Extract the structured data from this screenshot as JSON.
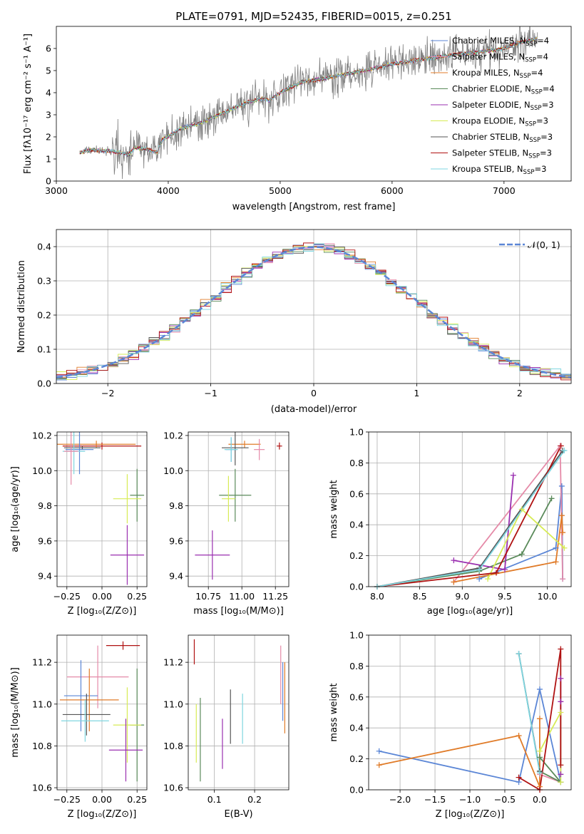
{
  "figure": {
    "title": "PLATE=0791, MJD=52435, FIBERID=0015, z=0.251"
  },
  "colors": {
    "chabrier_miles": "#5b86d6",
    "salpeter_miles": "#e58aa8",
    "kroupa_miles": "#e07b28",
    "chabrier_elodie": "#5a8a5a",
    "salpeter_elodie": "#9a2fb0",
    "kroupa_elodie": "#d7eb55",
    "chabrier_stelib": "#555555",
    "salpeter_stelib": "#b01212",
    "kroupa_stelib": "#7fd6e0",
    "data": "#808080",
    "normal": "#5b86d6",
    "grid": "#b0b0b0"
  },
  "chart_data": [
    {
      "id": "spectrum",
      "type": "line",
      "title": "PLATE=0791, MJD=52435, FIBERID=0015, z=0.251",
      "xlabel": "wavelength [Angstrom, rest frame]",
      "ylabel": "Flux [fλ10⁻¹⁷ erg cm⁻² s⁻¹ A⁻¹]",
      "xlim": [
        3000,
        7600
      ],
      "ylim": [
        0,
        7
      ],
      "xticks": [
        3000,
        4000,
        5000,
        6000,
        7000
      ],
      "yticks": [
        0,
        1,
        2,
        3,
        4,
        5,
        6
      ],
      "grid": false,
      "legend_position": "top-right",
      "legend": [
        {
          "label": "Chabrier MILES, N_SSP=4",
          "color_key": "chabrier_miles"
        },
        {
          "label": "Salpeter MILES, N_SSP=4",
          "color_key": "salpeter_miles"
        },
        {
          "label": "Kroupa MILES, N_SSP=4",
          "color_key": "kroupa_miles"
        },
        {
          "label": "Chabrier ELODIE, N_SSP=4",
          "color_key": "chabrier_elodie"
        },
        {
          "label": "Salpeter ELODIE, N_SSP=3",
          "color_key": "salpeter_elodie"
        },
        {
          "label": "Kroupa ELODIE, N_SSP=3",
          "color_key": "kroupa_elodie"
        },
        {
          "label": "Chabrier STELIB, N_SSP=3",
          "color_key": "chabrier_stelib"
        },
        {
          "label": "Salpeter STELIB, N_SSP=3",
          "color_key": "salpeter_stelib"
        },
        {
          "label": "Kroupa STELIB, N_SSP=3",
          "color_key": "kroupa_stelib"
        }
      ],
      "model_continuum": {
        "x": [
          3210,
          3300,
          3500,
          3650,
          3700,
          3800,
          3900,
          3950,
          4000,
          4100,
          4300,
          4500,
          4700,
          4850,
          4900,
          5000,
          5200,
          5400,
          5600,
          5800,
          6000,
          6200,
          6400,
          6600,
          6800,
          7000,
          7100,
          7200,
          7300
        ],
        "y": [
          1.3,
          1.4,
          1.35,
          1.2,
          1.5,
          1.45,
          1.3,
          1.9,
          2.0,
          2.35,
          2.65,
          3.1,
          3.55,
          3.75,
          3.65,
          4.0,
          4.5,
          4.65,
          4.85,
          5.05,
          5.3,
          5.45,
          5.6,
          5.75,
          5.85,
          6.0,
          6.2,
          6.35,
          6.45
        ]
      },
      "data_noise_amplitude": 1.2
    },
    {
      "id": "residuals",
      "type": "line",
      "xlabel": "(data-model)/error",
      "ylabel": "Normed distribution",
      "xlim": [
        -2.5,
        2.5
      ],
      "ylim": [
        0,
        0.45
      ],
      "xticks": [
        -2,
        -1,
        0,
        1,
        2
      ],
      "yticks": [
        0.0,
        0.1,
        0.2,
        0.3,
        0.4
      ],
      "grid": true,
      "legend_position": "top-right",
      "legend_label": "𝒩(0, 1)",
      "bin_width": 0.1
    },
    {
      "id": "age_vs_Z",
      "type": "scatter",
      "xlabel": "Z [log₁₀(Z/Z⊙)]",
      "ylabel": "age  [log₁₀(age/yr)]",
      "xlim": [
        -0.32,
        0.32
      ],
      "ylim": [
        9.34,
        10.22
      ],
      "xticks": [
        -0.25,
        0.0,
        0.25
      ],
      "yticks": [
        9.4,
        9.6,
        9.8,
        10.0,
        10.2
      ],
      "grid": true,
      "points": [
        {
          "key": "salpeter_stelib",
          "x": 0.0,
          "xerr": 0.28,
          "y": 10.14,
          "yerr": 0.02
        },
        {
          "key": "kroupa_miles",
          "x": -0.04,
          "xerr": 0.28,
          "y": 10.15,
          "yerr": 0.02
        },
        {
          "key": "chabrier_stelib",
          "x": -0.14,
          "xerr": 0.13,
          "y": 10.13,
          "yerr": 0.01
        },
        {
          "key": "chabrier_miles",
          "x": -0.16,
          "xerr": 0.1,
          "y": 10.12,
          "yerr": 0.14
        },
        {
          "key": "kroupa_stelib",
          "x": -0.2,
          "xerr": 0.08,
          "y": 10.11,
          "yerr": 0.13
        },
        {
          "key": "salpeter_miles",
          "x": -0.22,
          "xerr": 0.05,
          "y": 10.11,
          "yerr": 0.19
        },
        {
          "key": "chabrier_elodie",
          "x": 0.25,
          "xerr": 0.05,
          "y": 9.86,
          "yerr": 0.15
        },
        {
          "key": "kroupa_elodie",
          "x": 0.18,
          "xerr": 0.1,
          "y": 9.84,
          "yerr": 0.14
        },
        {
          "key": "salpeter_elodie",
          "x": 0.18,
          "xerr": 0.12,
          "y": 9.52,
          "yerr": 0.17
        }
      ]
    },
    {
      "id": "age_vs_mass",
      "type": "scatter",
      "xlabel": "mass [log₁₀(M/M⊙)]",
      "xlim": [
        10.6,
        11.35
      ],
      "ylim": [
        9.34,
        10.22
      ],
      "xticks": [
        10.75,
        11.0,
        11.25
      ],
      "yticks": [
        9.4,
        9.6,
        9.8,
        10.0,
        10.2
      ],
      "grid": true,
      "points": [
        {
          "key": "salpeter_stelib",
          "x": 11.28,
          "xerr": 0.02,
          "y": 10.14,
          "yerr": 0.02
        },
        {
          "key": "kroupa_miles",
          "x": 11.02,
          "xerr": 0.12,
          "y": 10.15,
          "yerr": 0.02
        },
        {
          "key": "salpeter_miles",
          "x": 11.13,
          "xerr": 0.04,
          "y": 10.12,
          "yerr": 0.06
        },
        {
          "key": "chabrier_stelib",
          "x": 10.95,
          "xerr": 0.1,
          "y": 10.13,
          "yerr": 0.1
        },
        {
          "key": "chabrier_miles",
          "x": 10.92,
          "xerr": 0.04,
          "y": 10.12,
          "yerr": 0.07
        },
        {
          "key": "kroupa_stelib",
          "x": 10.92,
          "xerr": 0.05,
          "y": 10.12,
          "yerr": 0.07
        },
        {
          "key": "chabrier_elodie",
          "x": 10.95,
          "xerr": 0.12,
          "y": 9.86,
          "yerr": 0.15
        },
        {
          "key": "kroupa_elodie",
          "x": 10.9,
          "xerr": 0.05,
          "y": 9.84,
          "yerr": 0.13
        },
        {
          "key": "salpeter_elodie",
          "x": 10.78,
          "xerr": 0.13,
          "y": 9.52,
          "yerr": 0.14
        }
      ]
    },
    {
      "id": "weight_vs_age",
      "type": "line",
      "xlabel": "age  [log₁₀(age/yr)]",
      "ylabel": "mass weight",
      "xlim": [
        7.9,
        10.28
      ],
      "ylim": [
        0,
        1.0
      ],
      "xticks": [
        8.0,
        8.5,
        9.0,
        9.5,
        10.0
      ],
      "yticks": [
        0.0,
        0.2,
        0.4,
        0.6,
        0.8,
        1.0
      ],
      "grid": true,
      "series": [
        {
          "key": "chabrier_miles",
          "x": [
            9.2,
            10.1,
            10.17,
            10.18
          ],
          "y": [
            0.05,
            0.25,
            0.65,
            0.05
          ]
        },
        {
          "key": "salpeter_miles",
          "x": [
            8.9,
            10.15,
            10.18
          ],
          "y": [
            0.03,
            0.91,
            0.05
          ]
        },
        {
          "key": "kroupa_miles",
          "x": [
            8.9,
            10.1,
            10.17,
            10.18
          ],
          "y": [
            0.03,
            0.16,
            0.46,
            0.35
          ]
        },
        {
          "key": "chabrier_elodie",
          "x": [
            8.0,
            9.2,
            9.7,
            10.05
          ],
          "y": [
            0.0,
            0.1,
            0.21,
            0.57
          ]
        },
        {
          "key": "salpeter_elodie",
          "x": [
            8.9,
            9.5,
            9.6
          ],
          "y": [
            0.17,
            0.11,
            0.72
          ]
        },
        {
          "key": "kroupa_elodie",
          "x": [
            9.3,
            9.7,
            10.2
          ],
          "y": [
            0.05,
            0.5,
            0.25
          ]
        },
        {
          "key": "chabrier_stelib",
          "x": [
            8.0,
            9.2,
            10.18
          ],
          "y": [
            0.0,
            0.12,
            0.88
          ]
        },
        {
          "key": "salpeter_stelib",
          "x": [
            8.0,
            9.4,
            10.16
          ],
          "y": [
            0.0,
            0.09,
            0.91
          ]
        },
        {
          "key": "kroupa_stelib",
          "x": [
            8.0,
            9.2,
            10.2
          ],
          "y": [
            0.0,
            0.11,
            0.88
          ]
        }
      ]
    },
    {
      "id": "mass_vs_Z",
      "type": "scatter",
      "xlabel": "Z [log₁₀(Z/Z⊙)]",
      "ylabel": "mass [log₁₀(M/M⊙)]",
      "xlim": [
        -0.32,
        0.32
      ],
      "ylim": [
        10.59,
        11.33
      ],
      "xticks": [
        -0.25,
        0.0,
        0.25
      ],
      "yticks": [
        10.6,
        10.8,
        11.0,
        11.2
      ],
      "grid": true,
      "points": [
        {
          "key": "salpeter_stelib",
          "x": 0.15,
          "xerr": 0.12,
          "y": 11.28,
          "yerr": 0.02
        },
        {
          "key": "salpeter_miles",
          "x": -0.03,
          "xerr": 0.22,
          "y": 11.13,
          "yerr": 0.15
        },
        {
          "key": "chabrier_miles",
          "x": -0.15,
          "xerr": 0.12,
          "y": 11.04,
          "yerr": 0.17
        },
        {
          "key": "kroupa_miles",
          "x": -0.09,
          "xerr": 0.21,
          "y": 11.02,
          "yerr": 0.15
        },
        {
          "key": "chabrier_stelib",
          "x": -0.11,
          "xerr": 0.17,
          "y": 10.95,
          "yerr": 0.1
        },
        {
          "key": "kroupa_stelib",
          "x": -0.12,
          "xerr": 0.17,
          "y": 10.92,
          "yerr": 0.1
        },
        {
          "key": "chabrier_elodie",
          "x": 0.25,
          "xerr": 0.05,
          "y": 10.9,
          "yerr": 0.27
        },
        {
          "key": "kroupa_elodie",
          "x": 0.18,
          "xerr": 0.1,
          "y": 10.9,
          "yerr": 0.18
        },
        {
          "key": "salpeter_elodie",
          "x": 0.17,
          "xerr": 0.12,
          "y": 10.78,
          "yerr": 0.15
        }
      ]
    },
    {
      "id": "mass_vs_ebv",
      "type": "scatter",
      "xlabel": "E(B-V)",
      "xlim": [
        0.035,
        0.285
      ],
      "ylim": [
        10.59,
        11.33
      ],
      "xticks": [
        0.1,
        0.2
      ],
      "yticks": [
        10.6,
        10.8,
        11.0,
        11.2
      ],
      "grid": true,
      "points": [
        {
          "key": "salpeter_stelib",
          "x": 0.05,
          "y": 11.25,
          "yerr": 0.06
        },
        {
          "key": "kroupa_elodie",
          "x": 0.055,
          "y": 10.86,
          "yerr": 0.14
        },
        {
          "key": "chabrier_elodie",
          "x": 0.065,
          "y": 10.83,
          "yerr": 0.2
        },
        {
          "key": "salpeter_elodie",
          "x": 0.12,
          "y": 10.81,
          "yerr": 0.12
        },
        {
          "key": "chabrier_stelib",
          "x": 0.14,
          "y": 10.94,
          "yerr": 0.13
        },
        {
          "key": "kroupa_stelib",
          "x": 0.17,
          "y": 10.93,
          "yerr": 0.12
        },
        {
          "key": "salpeter_miles",
          "x": 0.265,
          "y": 11.14,
          "yerr": 0.14
        },
        {
          "key": "kroupa_miles",
          "x": 0.275,
          "y": 11.03,
          "yerr": 0.17
        },
        {
          "key": "chabrier_miles",
          "x": 0.27,
          "y": 11.06,
          "yerr": 0.14
        }
      ]
    },
    {
      "id": "weight_vs_Z",
      "type": "line",
      "xlabel": "Z [log₁₀(Z/Z⊙)]",
      "ylabel": "mass weight",
      "xlim": [
        -2.45,
        0.45
      ],
      "ylim": [
        0,
        1.0
      ],
      "xticks": [
        -2.0,
        -1.5,
        -1.0,
        -0.5,
        0.0
      ],
      "yticks": [
        0.0,
        0.2,
        0.4,
        0.6,
        0.8,
        1.0
      ],
      "grid": true,
      "series": [
        {
          "key": "chabrier_miles",
          "x": [
            -2.3,
            -0.3,
            0.0,
            0.3
          ],
          "y": [
            0.25,
            0.05,
            0.65,
            0.05
          ]
        },
        {
          "key": "kroupa_miles",
          "x": [
            -2.3,
            -0.3,
            0.0,
            0.0
          ],
          "y": [
            0.16,
            0.35,
            0.02,
            0.46
          ]
        },
        {
          "key": "salpeter_miles",
          "x": [
            0.0,
            0.3
          ],
          "y": [
            0.1,
            0.05
          ]
        },
        {
          "key": "chabrier_elodie",
          "x": [
            0.0,
            0.3,
            0.0
          ],
          "y": [
            0.21,
            0.05,
            0.12
          ]
        },
        {
          "key": "salpeter_elodie",
          "x": [
            0.3,
            0.3,
            0.3
          ],
          "y": [
            0.72,
            0.57,
            0.1
          ]
        },
        {
          "key": "kroupa_elodie",
          "x": [
            0.0,
            0.3,
            0.3
          ],
          "y": [
            0.25,
            0.5,
            0.05
          ]
        },
        {
          "key": "chabrier_stelib",
          "x": [
            -0.3,
            0.0
          ],
          "y": [
            0.88,
            0.12
          ]
        },
        {
          "key": "salpeter_stelib",
          "x": [
            -0.3,
            0.0,
            0.3,
            0.3
          ],
          "y": [
            0.08,
            0.0,
            0.91,
            0.16
          ]
        },
        {
          "key": "kroupa_stelib",
          "x": [
            -0.3,
            0.0
          ],
          "y": [
            0.88,
            0.11
          ]
        }
      ]
    }
  ]
}
